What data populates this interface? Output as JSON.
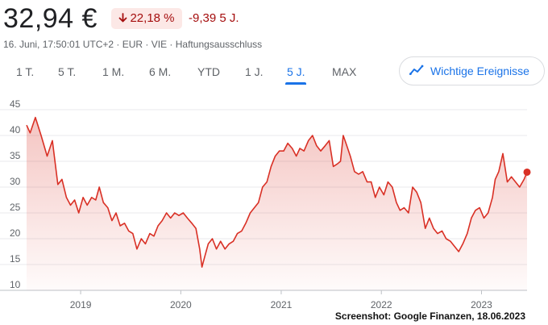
{
  "header": {
    "price": "32,94 €",
    "change_percent": "22,18 %",
    "change_abs": "-9,39",
    "change_period": "5 J.",
    "arrow_icon": "arrow-down-icon",
    "meta": "16. Juni, 17:50:01 UTC+2 · EUR · VIE · Haftungsausschluss"
  },
  "tabs": [
    {
      "label": "1 T."
    },
    {
      "label": "5 T."
    },
    {
      "label": "1 M."
    },
    {
      "label": "6 M."
    },
    {
      "label": "YTD"
    },
    {
      "label": "1 J."
    },
    {
      "label": "5 J.",
      "active": true
    },
    {
      "label": "MAX"
    }
  ],
  "events_button": {
    "label": "Wichtige Ereignisse",
    "icon": "trend-line-icon"
  },
  "credit": "Screenshot: Google Finanzen, 18.06.2023",
  "colors": {
    "line": "#d93025",
    "badge_bg": "#fce8e6",
    "negative": "#a50e0e",
    "accent": "#1a73e8",
    "grid": "#e8eaed"
  },
  "chart_data": {
    "type": "area",
    "ylim": [
      10,
      45
    ],
    "yticks": [
      "10",
      "15",
      "20",
      "25",
      "30",
      "35",
      "40",
      "45"
    ],
    "xticks": [
      "2019",
      "2020",
      "2021",
      "2022",
      "2023"
    ],
    "xrange": [
      "2018-06-18",
      "2023-06-16"
    ],
    "grid": true,
    "series": [
      {
        "x": [
          "2018-06-18",
          "2018-07-01",
          "2018-07-20",
          "2018-08-10",
          "2018-09-01",
          "2018-09-20",
          "2018-10-10",
          "2018-10-25",
          "2018-11-10",
          "2018-11-25",
          "2018-12-10",
          "2018-12-25",
          "2019-01-10",
          "2019-01-25",
          "2019-02-10",
          "2019-02-25",
          "2019-03-10",
          "2019-03-25",
          "2019-04-10",
          "2019-04-25",
          "2019-05-10",
          "2019-05-25",
          "2019-06-10",
          "2019-06-25",
          "2019-07-10",
          "2019-07-25",
          "2019-08-10",
          "2019-08-25",
          "2019-09-10",
          "2019-09-25",
          "2019-10-10",
          "2019-10-25",
          "2019-11-10",
          "2019-11-25",
          "2019-12-10",
          "2019-12-25",
          "2020-01-10",
          "2020-01-25",
          "2020-02-10",
          "2020-02-25",
          "2020-03-10",
          "2020-03-18",
          "2020-03-28",
          "2020-04-10",
          "2020-04-25",
          "2020-05-10",
          "2020-05-25",
          "2020-06-10",
          "2020-06-25",
          "2020-07-10",
          "2020-07-25",
          "2020-08-10",
          "2020-08-25",
          "2020-09-10",
          "2020-09-25",
          "2020-10-10",
          "2020-10-25",
          "2020-11-10",
          "2020-11-25",
          "2020-12-10",
          "2020-12-25",
          "2021-01-10",
          "2021-01-25",
          "2021-02-10",
          "2021-02-25",
          "2021-03-10",
          "2021-03-25",
          "2021-04-10",
          "2021-04-25",
          "2021-05-10",
          "2021-05-25",
          "2021-06-10",
          "2021-06-25",
          "2021-07-10",
          "2021-07-25",
          "2021-08-05",
          "2021-08-15",
          "2021-08-25",
          "2021-09-10",
          "2021-09-25",
          "2021-10-10",
          "2021-10-25",
          "2021-11-10",
          "2021-11-25",
          "2021-12-10",
          "2021-12-25",
          "2022-01-10",
          "2022-01-25",
          "2022-02-10",
          "2022-02-25",
          "2022-03-10",
          "2022-03-25",
          "2022-04-10",
          "2022-04-25",
          "2022-05-10",
          "2022-05-25",
          "2022-06-10",
          "2022-06-25",
          "2022-07-10",
          "2022-07-25",
          "2022-08-10",
          "2022-08-25",
          "2022-09-10",
          "2022-09-25",
          "2022-10-10",
          "2022-10-25",
          "2022-11-10",
          "2022-11-25",
          "2022-12-10",
          "2022-12-25",
          "2023-01-10",
          "2023-01-25",
          "2023-02-10",
          "2023-02-20",
          "2023-03-05",
          "2023-03-20",
          "2023-04-05",
          "2023-04-20",
          "2023-05-05",
          "2023-05-20",
          "2023-06-05",
          "2023-06-16"
        ],
        "y": [
          42.0,
          40.5,
          43.5,
          40.0,
          36.0,
          39.0,
          30.5,
          31.5,
          28.0,
          26.5,
          27.5,
          25.0,
          28.0,
          26.5,
          28.0,
          27.5,
          30.0,
          27.0,
          26.0,
          23.5,
          25.0,
          22.5,
          23.0,
          21.5,
          21.0,
          18.0,
          20.0,
          19.0,
          21.0,
          20.5,
          22.5,
          23.5,
          25.0,
          24.0,
          25.0,
          24.5,
          25.0,
          24.0,
          23.0,
          22.0,
          18.0,
          14.5,
          16.5,
          19.0,
          20.0,
          18.0,
          19.5,
          18.0,
          19.0,
          19.5,
          21.0,
          21.5,
          23.0,
          25.0,
          26.0,
          27.0,
          30.0,
          31.0,
          34.0,
          36.0,
          37.0,
          37.0,
          38.5,
          37.5,
          36.0,
          37.5,
          37.0,
          39.0,
          40.0,
          38.0,
          37.0,
          38.0,
          39.0,
          34.0,
          34.5,
          35.0,
          40.0,
          38.5,
          36.0,
          33.0,
          32.5,
          33.0,
          31.0,
          31.0,
          28.0,
          30.0,
          28.5,
          31.0,
          30.0,
          27.0,
          25.5,
          26.0,
          25.0,
          30.0,
          29.0,
          27.0,
          22.0,
          24.0,
          22.0,
          21.0,
          21.5,
          20.0,
          19.5,
          18.5,
          17.5,
          19.0,
          21.0,
          24.0,
          25.5,
          26.0,
          24.0,
          25.0,
          28.0,
          31.5,
          33.0,
          36.5,
          31.0,
          32.0,
          31.0,
          30.0,
          31.5,
          32.9
        ]
      }
    ]
  }
}
